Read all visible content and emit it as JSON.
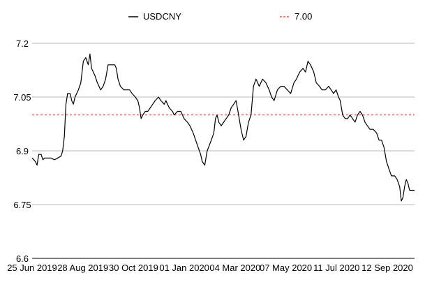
{
  "chart_data": {
    "type": "line",
    "title": "",
    "xlabel": "",
    "ylabel": "",
    "ylim": [
      6.6,
      7.2
    ],
    "yticks": [
      "6.6",
      "6.75",
      "6.9",
      "7.05",
      "7.2"
    ],
    "ytick_values": [
      6.6,
      6.75,
      6.9,
      7.05,
      7.2
    ],
    "xlim": [
      "2019-06-25",
      "2020-09-30"
    ],
    "xticks": [
      "25 Jun 2019",
      "28 Aug 2019",
      "30 Oct 2019",
      "01 Jan 2020",
      "04 Mar 2020",
      "07 May 2020",
      "11 Jul 2020",
      "12 Sep 2020"
    ],
    "xtick_dates": [
      "2019-06-25",
      "2019-08-28",
      "2019-10-30",
      "2020-01-01",
      "2020-03-04",
      "2020-05-07",
      "2020-07-11",
      "2020-09-12"
    ],
    "grid": "horizontal",
    "legend_position": "top",
    "series": [
      {
        "name": "USDCNY",
        "color": "#000000",
        "style": "solid",
        "points": [
          [
            "2019-06-25",
            6.88
          ],
          [
            "2019-06-27",
            6.875
          ],
          [
            "2019-06-29",
            6.87
          ],
          [
            "2019-07-01",
            6.86
          ],
          [
            "2019-07-03",
            6.89
          ],
          [
            "2019-07-06",
            6.89
          ],
          [
            "2019-07-08",
            6.875
          ],
          [
            "2019-07-10",
            6.88
          ],
          [
            "2019-07-14",
            6.88
          ],
          [
            "2019-07-18",
            6.88
          ],
          [
            "2019-07-22",
            6.875
          ],
          [
            "2019-07-26",
            6.88
          ],
          [
            "2019-07-30",
            6.885
          ],
          [
            "2019-08-01",
            6.9
          ],
          [
            "2019-08-03",
            6.94
          ],
          [
            "2019-08-05",
            7.03
          ],
          [
            "2019-08-07",
            7.06
          ],
          [
            "2019-08-10",
            7.06
          ],
          [
            "2019-08-12",
            7.04
          ],
          [
            "2019-08-14",
            7.03
          ],
          [
            "2019-08-16",
            7.05
          ],
          [
            "2019-08-20",
            7.07
          ],
          [
            "2019-08-23",
            7.09
          ],
          [
            "2019-08-26",
            7.15
          ],
          [
            "2019-08-29",
            7.16
          ],
          [
            "2019-09-01",
            7.14
          ],
          [
            "2019-09-03",
            7.17
          ],
          [
            "2019-09-05",
            7.13
          ],
          [
            "2019-09-09",
            7.11
          ],
          [
            "2019-09-12",
            7.09
          ],
          [
            "2019-09-16",
            7.07
          ],
          [
            "2019-09-19",
            7.08
          ],
          [
            "2019-09-22",
            7.1
          ],
          [
            "2019-09-25",
            7.14
          ],
          [
            "2019-09-29",
            7.14
          ],
          [
            "2019-10-03",
            7.14
          ],
          [
            "2019-10-05",
            7.13
          ],
          [
            "2019-10-07",
            7.1
          ],
          [
            "2019-10-10",
            7.08
          ],
          [
            "2019-10-14",
            7.07
          ],
          [
            "2019-10-18",
            7.07
          ],
          [
            "2019-10-21",
            7.07
          ],
          [
            "2019-10-24",
            7.06
          ],
          [
            "2019-10-28",
            7.05
          ],
          [
            "2019-10-31",
            7.04
          ],
          [
            "2019-11-02",
            7.02
          ],
          [
            "2019-11-04",
            6.99
          ],
          [
            "2019-11-06",
            7.0
          ],
          [
            "2019-11-09",
            7.01
          ],
          [
            "2019-11-12",
            7.01
          ],
          [
            "2019-11-15",
            7.02
          ],
          [
            "2019-11-18",
            7.03
          ],
          [
            "2019-11-21",
            7.04
          ],
          [
            "2019-11-25",
            7.05
          ],
          [
            "2019-11-28",
            7.04
          ],
          [
            "2019-12-02",
            7.03
          ],
          [
            "2019-12-04",
            7.04
          ],
          [
            "2019-12-08",
            7.02
          ],
          [
            "2019-12-12",
            7.01
          ],
          [
            "2019-12-14",
            7.0
          ],
          [
            "2019-12-18",
            7.01
          ],
          [
            "2019-12-22",
            7.01
          ],
          [
            "2019-12-26",
            6.99
          ],
          [
            "2019-12-30",
            6.98
          ],
          [
            "2020-01-02",
            6.97
          ],
          [
            "2020-01-06",
            6.95
          ],
          [
            "2020-01-09",
            6.93
          ],
          [
            "2020-01-12",
            6.91
          ],
          [
            "2020-01-15",
            6.89
          ],
          [
            "2020-01-17",
            6.87
          ],
          [
            "2020-01-20",
            6.86
          ],
          [
            "2020-01-23",
            6.9
          ],
          [
            "2020-01-28",
            6.93
          ],
          [
            "2020-01-31",
            6.95
          ],
          [
            "2020-02-02",
            6.99
          ],
          [
            "2020-02-04",
            7.0
          ],
          [
            "2020-02-06",
            6.98
          ],
          [
            "2020-02-09",
            6.97
          ],
          [
            "2020-02-12",
            6.98
          ],
          [
            "2020-02-15",
            6.99
          ],
          [
            "2020-02-18",
            7.0
          ],
          [
            "2020-02-21",
            7.02
          ],
          [
            "2020-02-24",
            7.03
          ],
          [
            "2020-02-27",
            7.04
          ],
          [
            "2020-03-01",
            7.0
          ],
          [
            "2020-03-04",
            6.96
          ],
          [
            "2020-03-07",
            6.93
          ],
          [
            "2020-03-10",
            6.94
          ],
          [
            "2020-03-13",
            6.98
          ],
          [
            "2020-03-16",
            7.0
          ],
          [
            "2020-03-19",
            7.08
          ],
          [
            "2020-03-22",
            7.1
          ],
          [
            "2020-03-26",
            7.08
          ],
          [
            "2020-03-30",
            7.1
          ],
          [
            "2020-04-03",
            7.09
          ],
          [
            "2020-04-07",
            7.07
          ],
          [
            "2020-04-10",
            7.05
          ],
          [
            "2020-04-13",
            7.04
          ],
          [
            "2020-04-17",
            7.07
          ],
          [
            "2020-04-21",
            7.08
          ],
          [
            "2020-04-25",
            7.08
          ],
          [
            "2020-04-29",
            7.07
          ],
          [
            "2020-05-03",
            7.06
          ],
          [
            "2020-05-07",
            7.09
          ],
          [
            "2020-05-10",
            7.1
          ],
          [
            "2020-05-14",
            7.12
          ],
          [
            "2020-05-18",
            7.13
          ],
          [
            "2020-05-21",
            7.12
          ],
          [
            "2020-05-24",
            7.15
          ],
          [
            "2020-05-27",
            7.14
          ],
          [
            "2020-05-31",
            7.12
          ],
          [
            "2020-06-03",
            7.09
          ],
          [
            "2020-06-07",
            7.08
          ],
          [
            "2020-06-10",
            7.07
          ],
          [
            "2020-06-14",
            7.07
          ],
          [
            "2020-06-18",
            7.08
          ],
          [
            "2020-06-21",
            7.07
          ],
          [
            "2020-06-24",
            7.06
          ],
          [
            "2020-06-27",
            7.07
          ],
          [
            "2020-06-30",
            7.05
          ],
          [
            "2020-07-02",
            7.04
          ],
          [
            "2020-07-05",
            7.0
          ],
          [
            "2020-07-08",
            6.99
          ],
          [
            "2020-07-11",
            6.99
          ],
          [
            "2020-07-14",
            7.0
          ],
          [
            "2020-07-17",
            6.99
          ],
          [
            "2020-07-20",
            6.98
          ],
          [
            "2020-07-23",
            7.0
          ],
          [
            "2020-07-26",
            7.01
          ],
          [
            "2020-07-29",
            7.0
          ],
          [
            "2020-08-01",
            6.98
          ],
          [
            "2020-08-04",
            6.97
          ],
          [
            "2020-08-07",
            6.96
          ],
          [
            "2020-08-11",
            6.96
          ],
          [
            "2020-08-15",
            6.95
          ],
          [
            "2020-08-18",
            6.93
          ],
          [
            "2020-08-21",
            6.93
          ],
          [
            "2020-08-24",
            6.91
          ],
          [
            "2020-08-27",
            6.87
          ],
          [
            "2020-08-30",
            6.85
          ],
          [
            "2020-09-02",
            6.83
          ],
          [
            "2020-09-06",
            6.83
          ],
          [
            "2020-09-09",
            6.82
          ],
          [
            "2020-09-12",
            6.8
          ],
          [
            "2020-09-14",
            6.76
          ],
          [
            "2020-09-16",
            6.77
          ],
          [
            "2020-09-18",
            6.8
          ],
          [
            "2020-09-20",
            6.82
          ],
          [
            "2020-09-22",
            6.81
          ],
          [
            "2020-09-24",
            6.79
          ],
          [
            "2020-09-26",
            6.79
          ],
          [
            "2020-09-30",
            6.79
          ]
        ]
      },
      {
        "name": "7.00",
        "color": "#e8281e",
        "style": "dashed",
        "constant": 7.0
      }
    ]
  }
}
